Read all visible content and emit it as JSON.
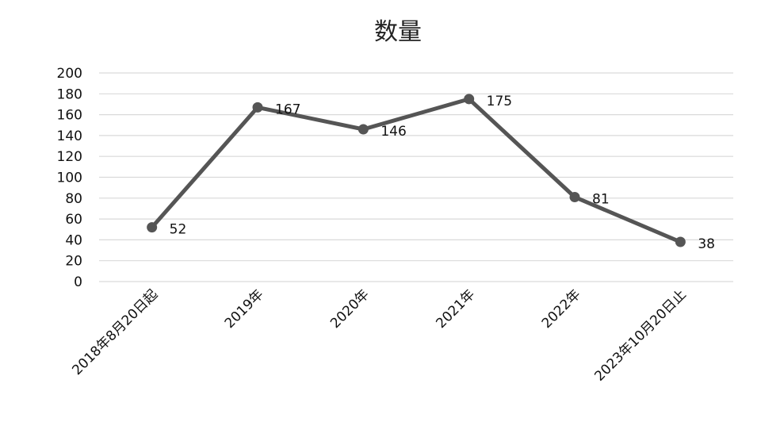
{
  "chart_data": {
    "type": "line",
    "title": "数量",
    "categories": [
      "2018年8月20日起",
      "2019年",
      "2020年",
      "2021年",
      "2022年",
      "2023年10月20日止"
    ],
    "series": [
      {
        "values": [
          52,
          167,
          146,
          175,
          81,
          38
        ]
      }
    ],
    "ylim": [
      0,
      200
    ],
    "yticks": [
      0,
      20,
      40,
      60,
      80,
      100,
      120,
      140,
      160,
      180,
      200
    ],
    "grid": true,
    "data_labels": true,
    "line_color": "#555555",
    "grid_color": "#d9d9d9"
  }
}
